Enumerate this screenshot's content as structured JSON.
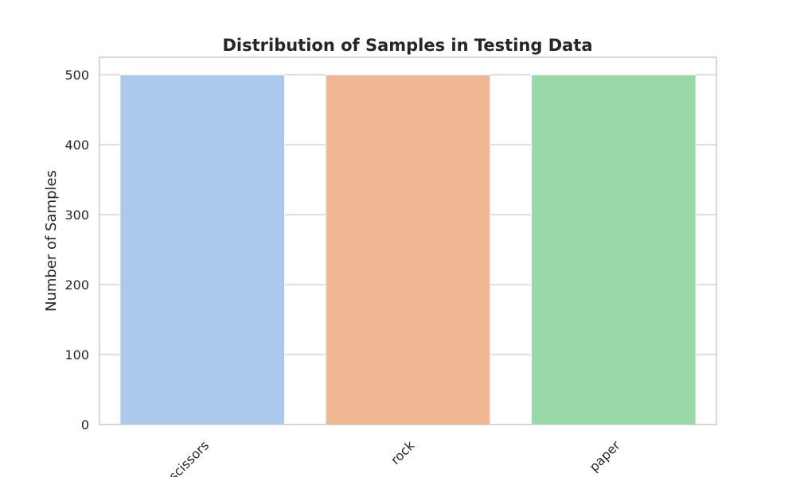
{
  "chart_data": {
    "type": "bar",
    "title": "Distribution of Samples in Testing Data",
    "xlabel": "",
    "ylabel": "Number of Samples",
    "categories": [
      "scissors",
      "rock",
      "paper"
    ],
    "values": [
      500,
      500,
      500
    ],
    "colors": [
      "#abc9ec",
      "#f0b793",
      "#98d9a7"
    ],
    "ylim": [
      0,
      525
    ],
    "yticks": [
      0,
      100,
      200,
      300,
      400,
      500
    ],
    "grid": true,
    "grid_color": "#cccccc",
    "background_color": "#ffffff",
    "xtick_rotation": 45
  }
}
